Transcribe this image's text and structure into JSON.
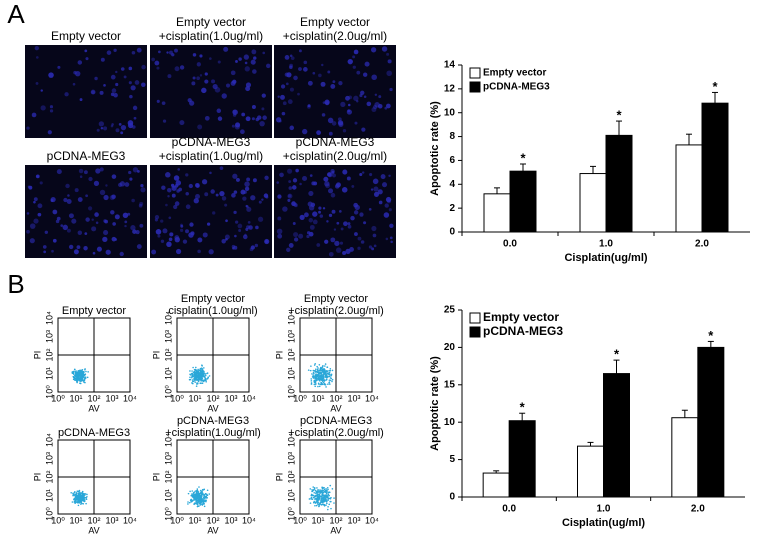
{
  "panel_labels": [
    "A",
    "B"
  ],
  "panel_a": {
    "image_labels": [
      [
        "Empty vector"
      ],
      [
        "Empty vector",
        "+cisplatin(1.0ug/ml)"
      ],
      [
        "Empty vector",
        "+cisplatin(2.0ug/ml)"
      ],
      [
        "pCDNA-MEG3"
      ],
      [
        "pCDNA-MEG3",
        "+cisplatin(1.0ug/ml)"
      ],
      [
        "pCDNA-MEG3",
        "+cisplatin(2.0ug/ml)"
      ]
    ]
  },
  "panel_b": {
    "plot_labels": [
      [
        "Empty vector"
      ],
      [
        "Empty vector",
        "cisplatin(1.0ug/ml)"
      ],
      [
        "Empty vector",
        "+cisplatin(2.0ug/ml)"
      ],
      [
        "pCDNA-MEG3"
      ],
      [
        "pCDNA-MEG3",
        "+cisplatin(1.0ug/ml)"
      ],
      [
        "pCDNA-MEG3",
        "+cisplatin(2.0ug/ml)"
      ]
    ],
    "x_axis_label": "AV",
    "y_axis_label": "PI",
    "axis_ticks": [
      "10⁰",
      "10¹",
      "10²",
      "10³",
      "10⁴"
    ]
  },
  "chart_data": [
    {
      "type": "bar",
      "x_label": "Cisplatin(ug/ml)",
      "y_label": "Apoptotic rate (%)",
      "categories": [
        "0.0",
        "1.0",
        "2.0"
      ],
      "ylim": [
        0,
        14
      ],
      "yticks": [
        0,
        2,
        4,
        6,
        8,
        10,
        12,
        14
      ],
      "legend": "top-left",
      "series": [
        {
          "name": "Empty vector",
          "color": "#ffffff",
          "values": [
            3.2,
            4.9,
            7.3
          ],
          "errors": [
            0.5,
            0.6,
            0.9
          ]
        },
        {
          "name": "pCDNA-MEG3",
          "color": "#000000",
          "values": [
            5.1,
            8.1,
            10.8
          ],
          "errors": [
            0.6,
            1.2,
            0.9
          ],
          "significance": [
            "*",
            "*",
            "*"
          ]
        }
      ]
    },
    {
      "type": "bar",
      "x_label": "Cisplatin(ug/ml)",
      "y_label": "Apoptotic rate (%)",
      "categories": [
        "0.0",
        "1.0",
        "2.0"
      ],
      "ylim": [
        0,
        25
      ],
      "yticks": [
        0,
        5,
        10,
        15,
        20,
        25
      ],
      "legend": "top-left",
      "series": [
        {
          "name": "Empty vector",
          "color": "#ffffff",
          "values": [
            3.2,
            6.8,
            10.6
          ],
          "errors": [
            0.3,
            0.5,
            1.0
          ]
        },
        {
          "name": "pCDNA-MEG3",
          "color": "#000000",
          "values": [
            10.2,
            16.5,
            20.0
          ],
          "errors": [
            1.0,
            1.8,
            0.8
          ],
          "significance": [
            "*",
            "*",
            "*"
          ]
        }
      ]
    }
  ]
}
